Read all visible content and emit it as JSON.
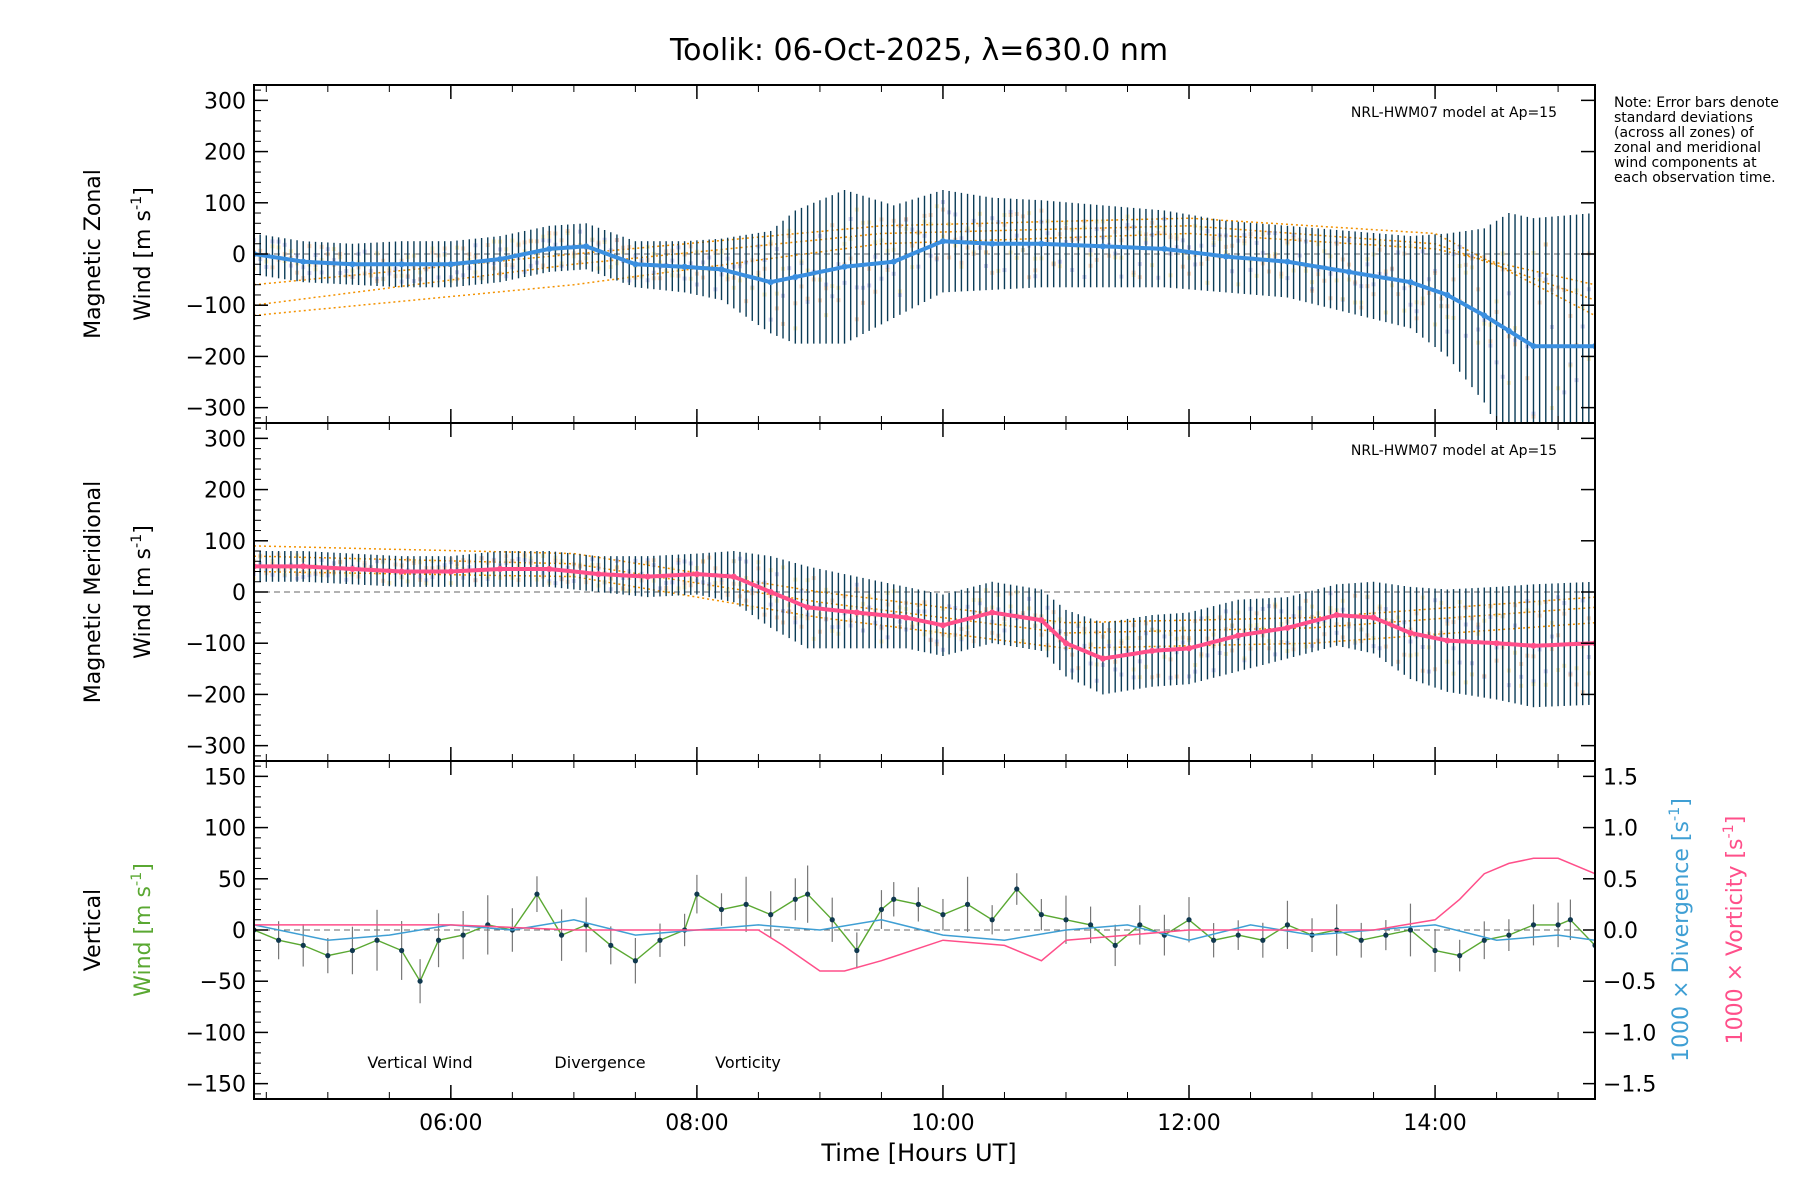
{
  "title": "Toolik: 06-Oct-2025, λ=630.0 nm",
  "note": "Note: Error bars denote standard deviations (across all zones) of zonal and meridional wind components at each observation time.",
  "xaxis": {
    "label": "Time [Hours UT]",
    "range_hours": [
      4.4,
      15.3
    ],
    "ticks": [
      {
        "h": 6,
        "label": "06:00"
      },
      {
        "h": 8,
        "label": "08:00"
      },
      {
        "h": 10,
        "label": "10:00"
      },
      {
        "h": 12,
        "label": "12:00"
      },
      {
        "h": 14,
        "label": "14:00"
      }
    ]
  },
  "colors": {
    "zonal_line": "#3a8fe0",
    "meridional_line": "#ff4f8a",
    "error_bar": "#0b3c57",
    "model": "#f39200",
    "zone_purple": "#a9a6e6",
    "zone_yellow": "#f7e08a",
    "zone_orange": "#f5b98a",
    "vertical": "#5aa832",
    "divergence": "#3f9fd4",
    "vorticity": "#ff4f8a",
    "point": "#10394f"
  },
  "chart_data": [
    {
      "type": "line",
      "name": "zonal",
      "ylabel_line1": "Magnetic Zonal",
      "ylabel_line2": "Wind [m s",
      "ylabel_sup": "-1",
      "ylabel_close": "]",
      "model_label": "NRL-HWM07 model at Ap=15",
      "ylim": [
        -330,
        330
      ],
      "yticks": [
        300,
        200,
        100,
        0,
        -100,
        -200,
        -300
      ],
      "series": [
        {
          "name": "Magnetic Zonal Wind",
          "x": [
            4.4,
            4.8,
            5.2,
            5.6,
            6.0,
            6.4,
            6.8,
            7.1,
            7.5,
            7.9,
            8.2,
            8.6,
            8.8,
            9.2,
            9.6,
            10.0,
            10.4,
            10.8,
            11.3,
            11.8,
            12.3,
            12.8,
            13.3,
            13.8,
            14.1,
            14.4,
            14.6,
            14.8,
            15.3
          ],
          "y": [
            0,
            -15,
            -20,
            -20,
            -20,
            -10,
            10,
            15,
            -20,
            -25,
            -30,
            -55,
            -45,
            -25,
            -15,
            25,
            20,
            20,
            15,
            10,
            -5,
            -15,
            -35,
            -55,
            -80,
            -120,
            -150,
            -180,
            -180
          ],
          "err": [
            40,
            40,
            40,
            45,
            45,
            45,
            45,
            45,
            45,
            50,
            60,
            100,
            130,
            150,
            110,
            100,
            90,
            85,
            80,
            75,
            70,
            70,
            80,
            90,
            120,
            170,
            230,
            250,
            260
          ]
        }
      ],
      "model_curves": [
        {
          "x": [
            4.4,
            7.0,
            9.5,
            12.0,
            14.0,
            15.3
          ],
          "y": [
            -120,
            -60,
            20,
            40,
            10,
            -60
          ]
        },
        {
          "x": [
            4.4,
            7.0,
            9.5,
            12.0,
            14.0,
            15.3
          ],
          "y": [
            -100,
            -20,
            40,
            55,
            20,
            -90
          ]
        },
        {
          "x": [
            4.4,
            7.0,
            9.5,
            12.0,
            14.0,
            15.3
          ],
          "y": [
            -60,
            0,
            55,
            70,
            40,
            -120
          ]
        }
      ]
    },
    {
      "type": "line",
      "name": "meridional",
      "ylabel_line1": "Magnetic Meridional",
      "ylabel_line2": "Wind [m s",
      "ylabel_sup": "-1",
      "ylabel_close": "]",
      "model_label": "NRL-HWM07 model at Ap=15",
      "ylim": [
        -330,
        330
      ],
      "yticks": [
        300,
        200,
        100,
        0,
        -100,
        -200,
        -300
      ],
      "series": [
        {
          "name": "Magnetic Meridional Wind",
          "x": [
            4.4,
            4.8,
            5.2,
            5.6,
            6.0,
            6.4,
            6.8,
            7.2,
            7.6,
            8.0,
            8.3,
            8.6,
            8.9,
            9.3,
            9.7,
            10.0,
            10.4,
            10.8,
            11.0,
            11.3,
            11.7,
            12.0,
            12.4,
            12.8,
            13.2,
            13.5,
            13.8,
            14.1,
            14.5,
            14.8,
            15.3
          ],
          "y": [
            50,
            50,
            45,
            40,
            40,
            45,
            45,
            35,
            30,
            35,
            30,
            0,
            -30,
            -40,
            -50,
            -65,
            -40,
            -55,
            -100,
            -130,
            -115,
            -110,
            -85,
            -70,
            -45,
            -50,
            -80,
            -95,
            -100,
            -105,
            -100
          ],
          "err": [
            30,
            30,
            30,
            30,
            30,
            35,
            35,
            35,
            40,
            40,
            50,
            70,
            80,
            70,
            60,
            60,
            60,
            60,
            65,
            70,
            70,
            70,
            70,
            60,
            60,
            70,
            90,
            100,
            110,
            120,
            120
          ]
        }
      ],
      "model_curves": [
        {
          "x": [
            4.4,
            7.0,
            9.0,
            11.0,
            13.0,
            15.3
          ],
          "y": [
            40,
            30,
            -50,
            -110,
            -100,
            -60
          ]
        },
        {
          "x": [
            4.4,
            7.0,
            9.0,
            11.0,
            13.0,
            15.3
          ],
          "y": [
            70,
            55,
            -20,
            -80,
            -70,
            -30
          ]
        },
        {
          "x": [
            4.4,
            7.0,
            9.0,
            11.0,
            13.0,
            15.3
          ],
          "y": [
            90,
            75,
            0,
            -60,
            -50,
            -10
          ]
        }
      ]
    },
    {
      "type": "line",
      "name": "vertical",
      "ylabel_line1": "Vertical",
      "ylabel_line2": "Wind [m s",
      "ylabel_sup": "-1",
      "ylabel_close": "]",
      "ylim": [
        -165,
        165
      ],
      "yticks": [
        150,
        100,
        50,
        0,
        -50,
        -100,
        -150
      ],
      "right_axis": {
        "ylim": [
          -1.65,
          1.65
        ],
        "yticks": [
          1.5,
          1.0,
          0.5,
          0.0,
          -0.5,
          -1.0,
          -1.5
        ],
        "tick_labels": [
          "1.5",
          "1.0",
          "0.5",
          "0.0",
          "−0.5",
          "−1.0",
          "−1.5"
        ],
        "label_div": "1000 × Divergence [s",
        "label_vort": "1000 × Vorticity [s",
        "label_sup": "-1",
        "label_close": "]"
      },
      "legend": [
        "Vertical Wind",
        "Divergence",
        "Vorticity"
      ],
      "series": [
        {
          "name": "Vertical Wind",
          "x": [
            4.4,
            4.6,
            4.8,
            5.0,
            5.2,
            5.4,
            5.6,
            5.75,
            5.9,
            6.1,
            6.3,
            6.5,
            6.7,
            6.9,
            7.1,
            7.3,
            7.5,
            7.7,
            7.9,
            8.0,
            8.2,
            8.4,
            8.6,
            8.8,
            8.9,
            9.1,
            9.3,
            9.5,
            9.6,
            9.8,
            10.0,
            10.2,
            10.4,
            10.6,
            10.8,
            11.0,
            11.2,
            11.4,
            11.6,
            11.8,
            12.0,
            12.2,
            12.4,
            12.6,
            12.8,
            13.0,
            13.2,
            13.4,
            13.6,
            13.8,
            14.0,
            14.2,
            14.4,
            14.6,
            14.8,
            15.0,
            15.1,
            15.3
          ],
          "y": [
            0,
            -10,
            -15,
            -25,
            -20,
            -10,
            -20,
            -50,
            -10,
            -5,
            5,
            0,
            35,
            -5,
            5,
            -15,
            -30,
            -10,
            0,
            35,
            20,
            25,
            15,
            30,
            35,
            10,
            -20,
            20,
            30,
            25,
            15,
            25,
            10,
            40,
            15,
            10,
            5,
            -15,
            5,
            -5,
            10,
            -10,
            -5,
            -10,
            5,
            -5,
            0,
            -10,
            -5,
            0,
            -20,
            -25,
            -10,
            -5,
            5,
            5,
            10,
            -15
          ]
        },
        {
          "name": "Divergence",
          "x": [
            4.4,
            5.0,
            5.5,
            6.0,
            6.5,
            7.0,
            7.5,
            8.0,
            8.5,
            9.0,
            9.5,
            10.0,
            10.5,
            11.0,
            11.5,
            12.0,
            12.5,
            13.0,
            13.5,
            14.0,
            14.5,
            15.0,
            15.3
          ],
          "y": [
            0.05,
            -0.1,
            -0.05,
            0.05,
            0.0,
            0.1,
            -0.05,
            0.0,
            0.05,
            0.0,
            0.1,
            -0.05,
            -0.1,
            0.0,
            0.05,
            -0.1,
            0.05,
            -0.05,
            0.0,
            0.05,
            -0.1,
            -0.05,
            -0.1
          ]
        },
        {
          "name": "Vorticity",
          "x": [
            4.4,
            5.0,
            6.0,
            7.0,
            8.0,
            8.5,
            8.7,
            9.0,
            9.2,
            9.5,
            10.0,
            10.5,
            10.8,
            11.0,
            11.5,
            12.0,
            12.5,
            13.0,
            13.5,
            14.0,
            14.2,
            14.4,
            14.6,
            14.8,
            15.0,
            15.3
          ],
          "y": [
            0.05,
            0.05,
            0.05,
            0.0,
            0.0,
            0.0,
            -0.15,
            -0.4,
            -0.4,
            -0.3,
            -0.1,
            -0.15,
            -0.3,
            -0.1,
            -0.05,
            0.0,
            0.0,
            0.0,
            0.0,
            0.1,
            0.3,
            0.55,
            0.65,
            0.7,
            0.7,
            0.55
          ]
        }
      ]
    }
  ]
}
